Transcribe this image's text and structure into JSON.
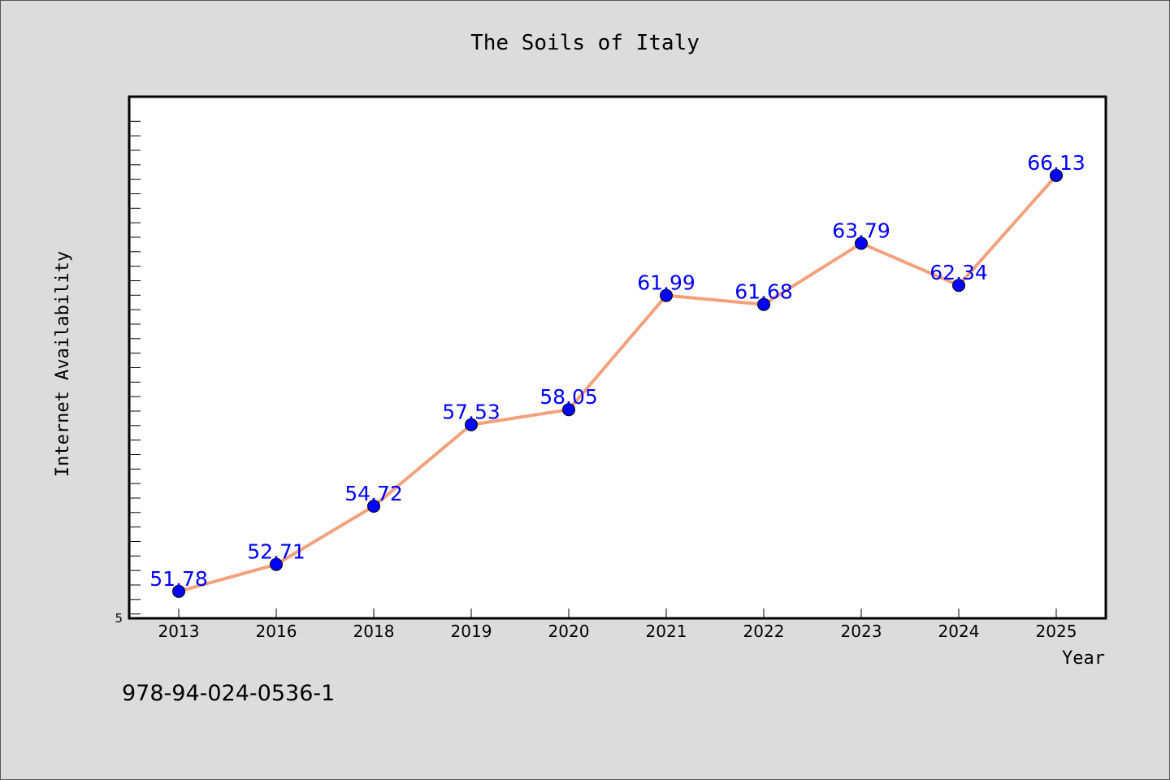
{
  "chart_data": {
    "type": "line",
    "title": "The Soils of Italy",
    "xlabel": "Year",
    "ylabel": "Internet Availability",
    "categories": [
      "2013",
      "2016",
      "2018",
      "2019",
      "2020",
      "2021",
      "2022",
      "2023",
      "2024",
      "2025"
    ],
    "series": [
      {
        "values": [
          51.78,
          52.71,
          54.72,
          57.53,
          58.05,
          61.99,
          61.68,
          63.79,
          62.34,
          66.13
        ],
        "labels": [
          "51.78",
          "52.71",
          "54.72",
          "57.53",
          "58.05",
          "61.99",
          "61.68",
          "63.79",
          "62.34",
          "66.13"
        ],
        "line_color": "#f4a07c",
        "marker_color": "#0000ff"
      }
    ],
    "ylim": [
      50.85,
      68.85
    ],
    "ytick_labels": [
      "5"
    ],
    "grid": false,
    "legend": "none"
  },
  "footer": {
    "isbn": "978-94-024-0536-1"
  }
}
